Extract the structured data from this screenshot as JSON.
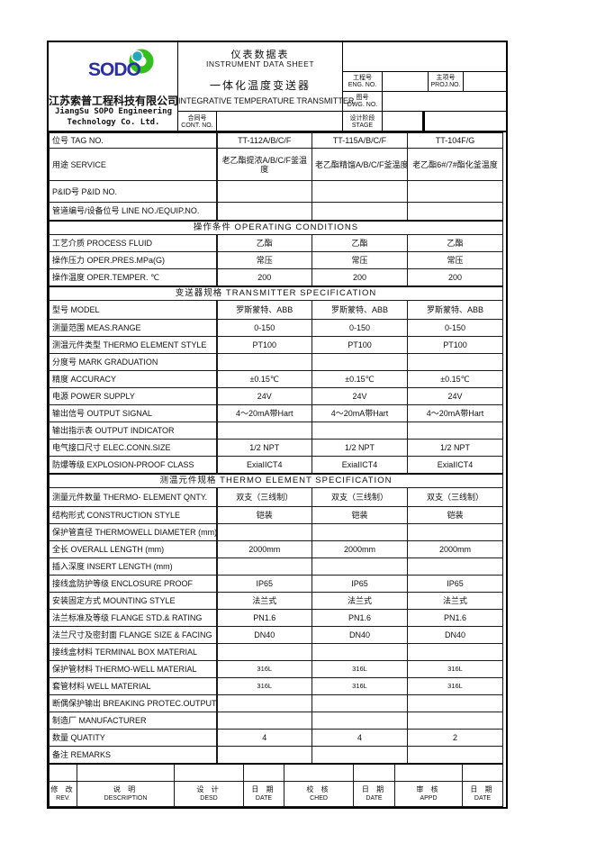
{
  "header": {
    "logo_text": "SODO",
    "logo_colors": {
      "text": "#2a2fa2",
      "ring": "#33bf1c",
      "dot": "#23a7bb"
    },
    "company_zh": "江苏索普工程科技有限公司",
    "company_en_line1": "JiangSu SOPO Engineering",
    "company_en_line2": "Technology Co. Ltd.",
    "title_zh": "仪表数据表",
    "title_en": "INSTRUMENT DATA SHEET",
    "subtitle_zh": "一体化温度变送器",
    "subtitle_en": "INTEGRATIVE TEMPERATURE TRANSMITTER",
    "cont_no_zh": "合同号",
    "cont_no_en": "CONT. NO.",
    "cont_no_value": "",
    "eng_no_zh": "工程号",
    "eng_no_en": "ENG. NO.",
    "eng_no_value": "",
    "proj_no_zh": "主项号",
    "proj_no_en": "PROJ.NO.",
    "proj_no_value": "",
    "dwg_no_zh": "图号",
    "dwg_no_en": "DWG. NO.",
    "dwg_no_value": "",
    "stage_zh": "设计阶段",
    "stage_en": "STAGE",
    "stage_value": ""
  },
  "table": {
    "rows": [
      {
        "type": "data",
        "label": "位号 TAG NO.",
        "values": [
          "TT-112A/B/C/F",
          "TT-115A/B/C/F",
          "TT-104F/G"
        ],
        "h": 17
      },
      {
        "type": "data",
        "label": "用途  SERVICE",
        "values": [
          "老乙酯提浓A/B/C/F釜温度",
          "老乙酯精馏A/B/C/F釜温度",
          "老乙酯6#/7#酯化釜温度"
        ],
        "h": 36,
        "nowrap_cols": [
          1
        ]
      },
      {
        "type": "data",
        "label": "P&ID号 P&ID NO.",
        "values": [
          "",
          "",
          ""
        ],
        "h": 24
      },
      {
        "type": "data",
        "label": "管道编号/设备位号 LINE NO./EQUIP.NO.",
        "values": [
          "",
          "",
          ""
        ],
        "h": 20
      },
      {
        "type": "section",
        "label": "操作条件 OPERATING CONDITIONS",
        "h": 16
      },
      {
        "type": "data",
        "label": "工艺介质 PROCESS FLUID",
        "values": [
          "乙酯",
          "乙酯",
          "乙酯"
        ],
        "h": 19
      },
      {
        "type": "data",
        "label": "操作压力 OPER.PRES.MPa(G)",
        "values": [
          "常压",
          "常压",
          "常压"
        ],
        "h": 19
      },
      {
        "type": "data",
        "label": "操作温度 OPER.TEMPER. ℃",
        "values": [
          "200",
          "200",
          "200"
        ],
        "h": 19
      },
      {
        "type": "section",
        "label": "变送器规格 TRANSMITTER SPECIFICATION",
        "h": 16
      },
      {
        "type": "data",
        "label": "型号 MODEL",
        "values": [
          "罗斯蒙特、ABB",
          "罗斯蒙特、ABB",
          "罗斯蒙特、ABB"
        ],
        "h": 21
      },
      {
        "type": "data",
        "label": "测量范围 MEAS.RANGE",
        "values": [
          "0-150",
          "0-150",
          "0-150"
        ],
        "h": 19
      },
      {
        "type": "data",
        "label": "测温元件类型 THERMO ELEMENT STYLE",
        "values": [
          "PT100",
          "PT100",
          "PT100"
        ],
        "h": 19
      },
      {
        "type": "data",
        "label": "分度号 MARK GRADUATION",
        "values": [
          "",
          "",
          ""
        ],
        "h": 19
      },
      {
        "type": "data",
        "label": "精度 ACCURACY",
        "values": [
          "±0.15℃",
          "±0.15℃",
          "±0.15℃"
        ],
        "h": 19
      },
      {
        "type": "data",
        "label": "电源 POWER SUPPLY",
        "values": [
          "24V",
          "24V",
          "24V"
        ],
        "h": 19
      },
      {
        "type": "data",
        "label": "输出信号 OUTPUT SIGNAL",
        "values": [
          "4～20mA带Hart",
          "4～20mA带Hart",
          "4～20mA带Hart"
        ],
        "h": 19
      },
      {
        "type": "data",
        "label": "输出指示表 OUTPUT INDICATOR",
        "values": [
          "",
          "",
          ""
        ],
        "h": 19
      },
      {
        "type": "data",
        "label": "电气接口尺寸 ELEC.CONN.SIZE",
        "values": [
          "1/2 NPT",
          "1/2 NPT",
          "1/2 NPT"
        ],
        "h": 19
      },
      {
        "type": "data",
        "label": "防爆等级 EXPLOSION-PROOF CLASS",
        "values": [
          "ExiaIICT4",
          "ExiaIICT4",
          "ExiaIICT4"
        ],
        "h": 19
      },
      {
        "type": "section",
        "label": "测温元件规格 THERMO ELEMENT SPECIFICATION",
        "h": 16
      },
      {
        "type": "data",
        "label": "测量元件数量 THERMO- ELEMENT QNTY.",
        "values": [
          "双支（三线制）",
          "双支（三线制）",
          "双支（三线制）"
        ],
        "h": 21
      },
      {
        "type": "data",
        "label": "结构形式 CONSTRUCTION STYLE",
        "values": [
          "铠装",
          "铠装",
          "铠装"
        ],
        "h": 19
      },
      {
        "type": "data",
        "label": "保护管直径 THERMOWELL DIAMETER (mm)",
        "values": [
          "",
          "",
          ""
        ],
        "h": 19
      },
      {
        "type": "data",
        "label": "全长 OVERALL LENGTH (mm)",
        "values": [
          "2000mm",
          "2000mm",
          "2000mm"
        ],
        "h": 19
      },
      {
        "type": "data",
        "label": "插入深度 INSERT LENGTH (mm)",
        "values": [
          "",
          "",
          ""
        ],
        "h": 19
      },
      {
        "type": "data",
        "label": "接线盒防护等级 ENCLOSURE PROOF",
        "values": [
          "IP65",
          "IP65",
          "IP65"
        ],
        "h": 19
      },
      {
        "type": "data",
        "label": "安装固定方式 MOUNTING STYLE",
        "values": [
          "法兰式",
          "法兰式",
          "法兰式"
        ],
        "h": 19
      },
      {
        "type": "data",
        "label": "法兰标准及等级 FLANGE STD.& RATING",
        "values": [
          "PN1.6",
          "PN1.6",
          "PN1.6"
        ],
        "h": 19
      },
      {
        "type": "data",
        "label": "法兰尺寸及密封面 FLANGE SIZE & FACING",
        "values": [
          "DN40",
          "DN40",
          "DN40"
        ],
        "h": 19
      },
      {
        "type": "data",
        "label": "接线盒材料 TERMINAL BOX MATERIAL",
        "values": [
          "",
          "",
          ""
        ],
        "h": 19
      },
      {
        "type": "data",
        "label": "保护管材料 THERMO-WELL MATERIAL",
        "values": [
          "316L",
          "316L",
          "316L"
        ],
        "h": 19,
        "small": true
      },
      {
        "type": "data",
        "label": "套管材料 WELL MATERIAL",
        "values": [
          "316L",
          "316L",
          "316L"
        ],
        "h": 19,
        "small": true
      },
      {
        "type": "data",
        "label": "断偶保护输出 BREAKING PROTEC.OUTPUT",
        "values": [
          "",
          "",
          ""
        ],
        "h": 19
      },
      {
        "type": "data",
        "label": "制造厂 MANUFACTURER",
        "values": [
          "",
          "",
          ""
        ],
        "h": 19
      },
      {
        "type": "data",
        "label": "数量  QUATITY",
        "values": [
          "4",
          "4",
          "2"
        ],
        "h": 19
      },
      {
        "type": "data",
        "label": "备注  REMARKS",
        "values": [
          "",
          "",
          ""
        ],
        "h": 19
      }
    ]
  },
  "footer": {
    "columns": [
      {
        "zh": "修 改",
        "en": "REV.",
        "w": 31
      },
      {
        "zh": "说  明",
        "en": "DESCRIPTION",
        "w": 108
      },
      {
        "zh": "设 计",
        "en": "DESD",
        "w": 77
      },
      {
        "zh": "日 期",
        "en": "DATE",
        "w": 45
      },
      {
        "zh": "校 核",
        "en": "CHED",
        "w": 77
      },
      {
        "zh": "日 期",
        "en": "DATE",
        "w": 46
      },
      {
        "zh": "审 核",
        "en": "APPD",
        "w": 75
      },
      {
        "zh": "日 期",
        "en": "DATE",
        "w": 45
      }
    ]
  }
}
